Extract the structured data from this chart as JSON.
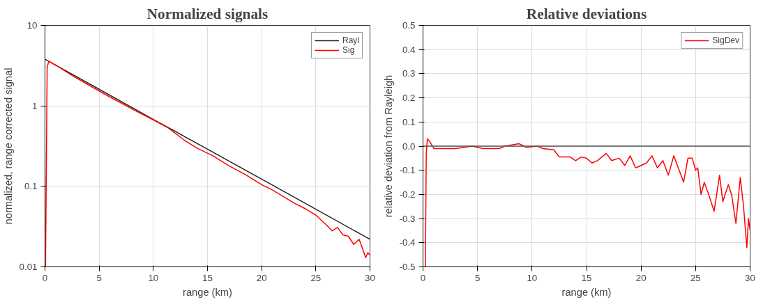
{
  "chart_data": [
    {
      "type": "line",
      "title": "Normalized signals",
      "xlabel": "range (km)",
      "ylabel": "normalized, range corrected signal",
      "log": "y",
      "xlim": [
        0,
        30
      ],
      "xticks": [
        0,
        5,
        10,
        15,
        20,
        25,
        30
      ],
      "ylim": [
        0.01,
        10
      ],
      "yticks": [
        0.01,
        0.1,
        1,
        10
      ],
      "grid": true,
      "legend": "top right",
      "marker": "none",
      "line_style": "solid",
      "series": [
        {
          "name": "Rayl",
          "color": "#222222",
          "x": [
            0,
            5,
            10,
            15,
            20,
            25,
            30
          ],
          "values": [
            3.8,
            1.61,
            0.68,
            0.29,
            0.123,
            0.052,
            0.022
          ]
        },
        {
          "name": "Sig",
          "color": "#ff0000",
          "x": [
            0.05,
            0.2,
            0.35,
            1,
            2.7,
            5.5,
            8.5,
            10,
            11.4,
            12.8,
            14,
            15.5,
            17,
            18.5,
            20,
            21,
            22,
            23,
            24,
            25,
            25.5,
            26,
            26.5,
            27,
            27.5,
            28,
            28.5,
            29,
            29.3,
            29.6,
            29.8,
            30
          ],
          "values": [
            0.01,
            3.0,
            3.6,
            3.2,
            2.3,
            1.4,
            0.85,
            0.67,
            0.53,
            0.38,
            0.3,
            0.24,
            0.18,
            0.14,
            0.105,
            0.09,
            0.075,
            0.062,
            0.053,
            0.044,
            0.038,
            0.033,
            0.028,
            0.031,
            0.025,
            0.024,
            0.019,
            0.022,
            0.017,
            0.013,
            0.015,
            0.014
          ]
        }
      ]
    },
    {
      "type": "line",
      "title": "Relative deviations",
      "xlabel": "range (km)",
      "ylabel": "relative deviation from Rayleigh",
      "xlim": [
        0,
        30
      ],
      "xticks": [
        0,
        5,
        10,
        15,
        20,
        25,
        30
      ],
      "ylim": [
        -0.5,
        0.5
      ],
      "yticks": [
        {
          "value": -0.5,
          "label": "-0.5"
        },
        {
          "value": -0.4,
          "label": "-0.4"
        },
        {
          "value": -0.3,
          "label": "-0.3"
        },
        {
          "value": -0.2,
          "label": "-0.2"
        },
        {
          "value": -0.1,
          "label": "-0.1"
        },
        {
          "value": 0,
          "label": "0.0"
        },
        0.1,
        0.2,
        0.3,
        0.4,
        0.5
      ],
      "grid": true,
      "legend": "top right",
      "marker": "none",
      "line_style": "solid",
      "ref_lines": [
        {
          "axis": "y",
          "value": 0,
          "label": null,
          "color": "#555555"
        }
      ],
      "series": [
        {
          "name": "SigDev",
          "color": "#ff0000",
          "x": [
            0.22,
            0.3,
            0.4,
            0.6,
            1,
            2,
            3,
            4.5,
            5.5,
            7,
            7.5,
            8.8,
            9.5,
            10.5,
            11,
            12,
            12.5,
            13.5,
            14,
            14.5,
            15,
            15.5,
            16,
            16.8,
            17.3,
            18,
            18.5,
            19,
            19.5,
            20,
            20.5,
            21,
            21.5,
            22,
            22.5,
            23,
            23.5,
            23.9,
            24.3,
            24.7,
            25,
            25.2,
            25.5,
            25.8,
            26.2,
            26.7,
            27.2,
            27.5,
            28,
            28.3,
            28.7,
            29.1,
            29.4,
            29.7,
            29.85,
            30
          ],
          "values": [
            -0.5,
            -0.03,
            0.03,
            0.02,
            -0.01,
            -0.01,
            -0.01,
            0.0,
            -0.01,
            -0.01,
            0.0,
            0.01,
            -0.005,
            0.0,
            -0.01,
            -0.015,
            -0.045,
            -0.045,
            -0.06,
            -0.045,
            -0.05,
            -0.07,
            -0.06,
            -0.03,
            -0.06,
            -0.05,
            -0.08,
            -0.04,
            -0.09,
            -0.08,
            -0.07,
            -0.04,
            -0.09,
            -0.06,
            -0.12,
            -0.04,
            -0.1,
            -0.15,
            -0.05,
            -0.05,
            -0.1,
            -0.09,
            -0.2,
            -0.15,
            -0.2,
            -0.27,
            -0.12,
            -0.23,
            -0.16,
            -0.2,
            -0.32,
            -0.13,
            -0.25,
            -0.42,
            -0.3,
            -0.35
          ]
        }
      ]
    }
  ]
}
